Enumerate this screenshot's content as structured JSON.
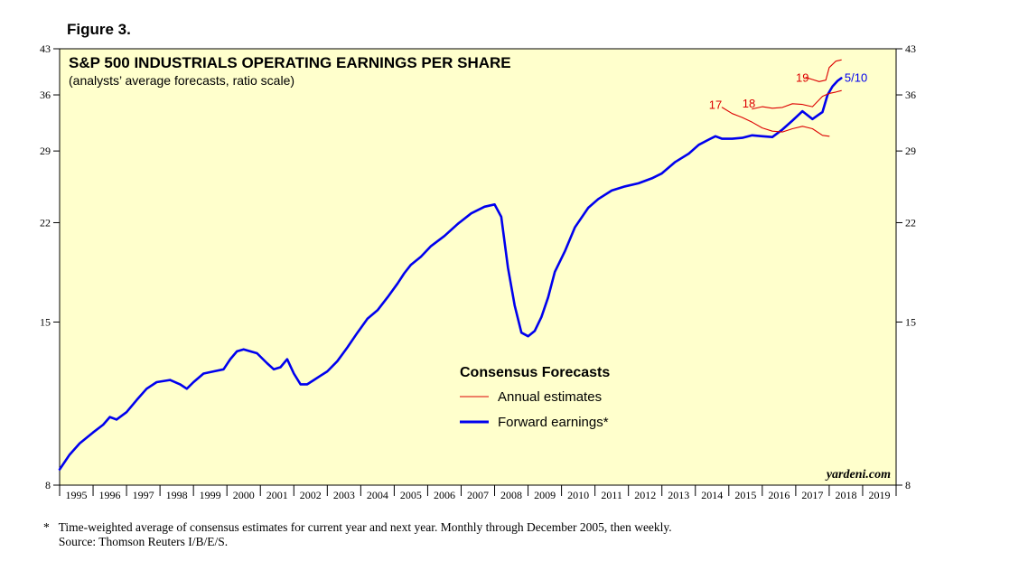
{
  "figure_label": "Figure 3.",
  "footnote": {
    "line1": "*   Time-weighted average of consensus estimates for current year and next year. Monthly through December 2005, then weekly.",
    "line2": "     Source: Thomson Reuters I/B/E/S."
  },
  "colors": {
    "background": "#ffffcc",
    "forward": "#0000ee",
    "annual": "#dd0000",
    "axis": "#000000"
  },
  "chart_data": {
    "type": "line",
    "scale": "log",
    "title": "S&P 500 INDUSTRIALS OPERATING EARNINGS PER SHARE",
    "subtitle": "(analysts’ average forecasts, ratio scale)",
    "ylim": [
      8,
      43
    ],
    "xlim": [
      1995.0,
      2020.0
    ],
    "yticks": [
      8,
      15,
      22,
      29,
      36,
      43
    ],
    "ytick_labels": [
      "8",
      "15",
      "22",
      "29",
      "36",
      "43"
    ],
    "xtick_labels": [
      "1995",
      "1996",
      "1997",
      "1998",
      "1999",
      "2000",
      "2001",
      "2002",
      "2003",
      "2004",
      "2005",
      "2006",
      "2007",
      "2008",
      "2009",
      "2010",
      "2011",
      "2012",
      "2013",
      "2014",
      "2015",
      "2016",
      "2017",
      "2018",
      "2019"
    ],
    "watermark": "yardeni.com",
    "legend": {
      "title": "Consensus Forecasts",
      "position": "center-bottom",
      "items": [
        {
          "label": "Annual estimates",
          "series": "annual"
        },
        {
          "label": "Forward earnings*",
          "series": "forward"
        }
      ]
    },
    "annotations": [
      {
        "text": "17",
        "x": 2014.6,
        "y": 34.1,
        "color": "annual"
      },
      {
        "text": "18",
        "x": 2015.6,
        "y": 34.3,
        "color": "annual"
      },
      {
        "text": "19",
        "x": 2017.2,
        "y": 37.9,
        "color": "annual"
      },
      {
        "text": "5/10",
        "x": 2018.8,
        "y": 37.9,
        "color": "forward"
      }
    ],
    "series": [
      {
        "name": "Forward earnings",
        "x": [
          1995.0,
          1995.3,
          1995.6,
          1996.0,
          1996.3,
          1996.5,
          1996.7,
          1997.0,
          1997.3,
          1997.6,
          1997.9,
          1998.3,
          1998.6,
          1998.8,
          1999.0,
          1999.3,
          1999.6,
          1999.9,
          2000.1,
          2000.3,
          2000.5,
          2000.7,
          2000.9,
          2001.2,
          2001.4,
          2001.6,
          2001.8,
          2002.0,
          2002.2,
          2002.4,
          2002.6,
          2002.8,
          2003.0,
          2003.3,
          2003.6,
          2003.9,
          2004.2,
          2004.5,
          2004.8,
          2005.1,
          2005.3,
          2005.5,
          2005.8,
          2006.1,
          2006.5,
          2006.9,
          2007.3,
          2007.7,
          2008.0,
          2008.2,
          2008.4,
          2008.6,
          2008.8,
          2009.0,
          2009.2,
          2009.4,
          2009.6,
          2009.8,
          2010.1,
          2010.4,
          2010.8,
          2011.1,
          2011.5,
          2011.9,
          2012.3,
          2012.7,
          2013.0,
          2013.4,
          2013.8,
          2014.1,
          2014.4,
          2014.6,
          2014.8,
          2015.1,
          2015.4,
          2015.7,
          2016.0,
          2016.3,
          2016.6,
          2016.9,
          2017.2,
          2017.5,
          2017.8,
          2017.95,
          2018.1,
          2018.25,
          2018.36
        ],
        "values": [
          8.5,
          9.0,
          9.4,
          9.8,
          10.1,
          10.4,
          10.3,
          10.6,
          11.1,
          11.6,
          11.9,
          12.0,
          11.8,
          11.6,
          11.9,
          12.3,
          12.4,
          12.5,
          13.0,
          13.4,
          13.5,
          13.4,
          13.3,
          12.8,
          12.5,
          12.6,
          13.0,
          12.3,
          11.8,
          11.8,
          12.0,
          12.2,
          12.4,
          12.9,
          13.6,
          14.4,
          15.2,
          15.7,
          16.5,
          17.4,
          18.1,
          18.7,
          19.3,
          20.1,
          20.9,
          21.9,
          22.8,
          23.4,
          23.6,
          22.5,
          18.5,
          16.0,
          14.4,
          14.2,
          14.5,
          15.3,
          16.5,
          18.2,
          19.7,
          21.6,
          23.3,
          24.1,
          24.9,
          25.3,
          25.6,
          26.1,
          26.6,
          27.8,
          28.7,
          29.7,
          30.3,
          30.7,
          30.4,
          30.4,
          30.5,
          30.8,
          30.7,
          30.6,
          31.5,
          32.6,
          33.8,
          32.8,
          33.7,
          36.0,
          37.2,
          38.0,
          38.4
        ]
      },
      {
        "name": "Annual estimates 2017",
        "x": [
          2014.8,
          2015.1,
          2015.4,
          2015.7,
          2016.0,
          2016.3,
          2016.6,
          2016.9,
          2017.2,
          2017.5,
          2017.8,
          2018.0
        ],
        "values": [
          34.3,
          33.5,
          33.0,
          32.4,
          31.7,
          31.3,
          31.2,
          31.6,
          31.9,
          31.6,
          30.8,
          30.7
        ]
      },
      {
        "name": "Annual estimates 2018",
        "x": [
          2015.7,
          2016.0,
          2016.3,
          2016.6,
          2016.9,
          2017.2,
          2017.5,
          2017.8,
          2018.0,
          2018.2,
          2018.36
        ],
        "values": [
          34.1,
          34.4,
          34.2,
          34.3,
          34.8,
          34.7,
          34.4,
          35.8,
          36.2,
          36.4,
          36.6
        ]
      },
      {
        "name": "Annual estimates 2019",
        "x": [
          2017.3,
          2017.5,
          2017.7,
          2017.9,
          2018.0,
          2018.2,
          2018.36
        ],
        "values": [
          38.5,
          38.2,
          37.9,
          38.1,
          40.0,
          41.0,
          41.2
        ]
      }
    ]
  }
}
